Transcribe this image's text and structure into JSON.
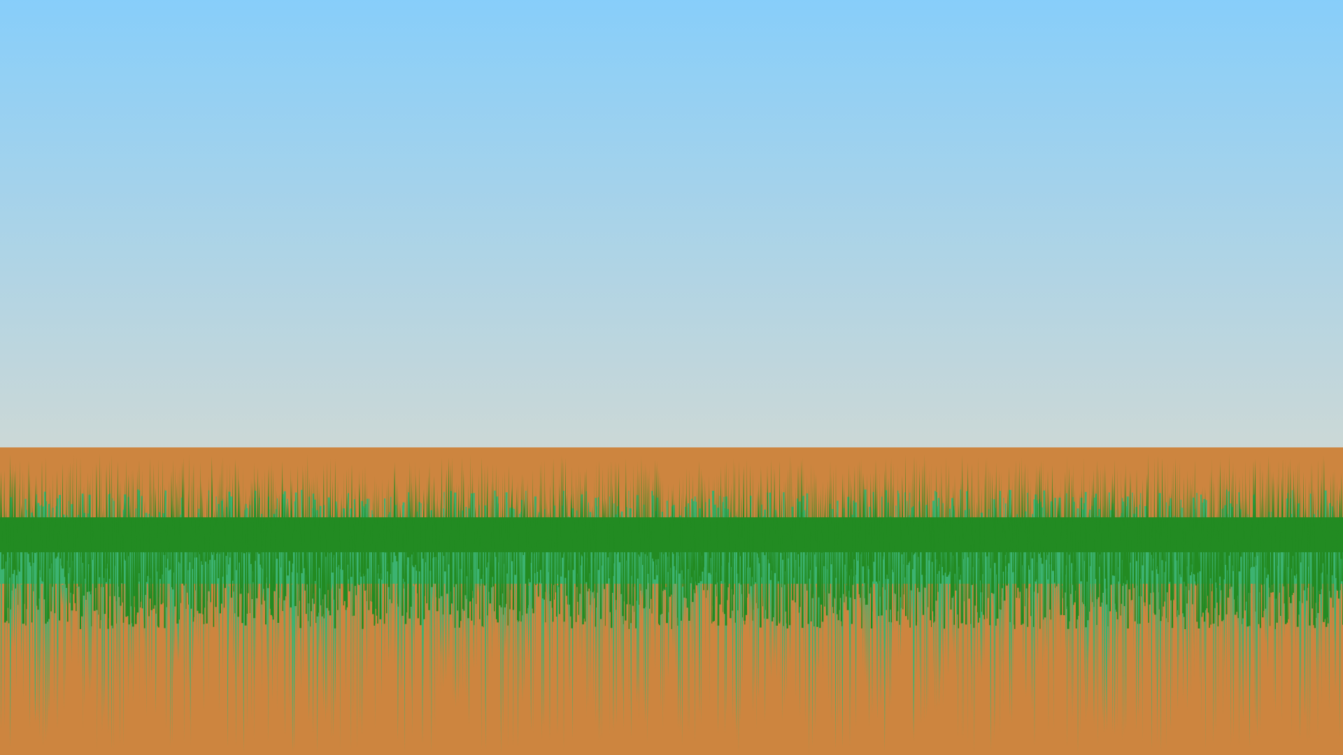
{
  "scene": {
    "colors": {
      "sky_top": "#87cefa",
      "sky_bottom": "#d2d9d3",
      "soil": "#cd853f",
      "grass_dark": "#228b22",
      "grass_light": "#3cb371"
    },
    "layers": [
      "sky",
      "soil",
      "grass-blades-light",
      "grass-blades-dark"
    ],
    "seed": 20240611
  }
}
